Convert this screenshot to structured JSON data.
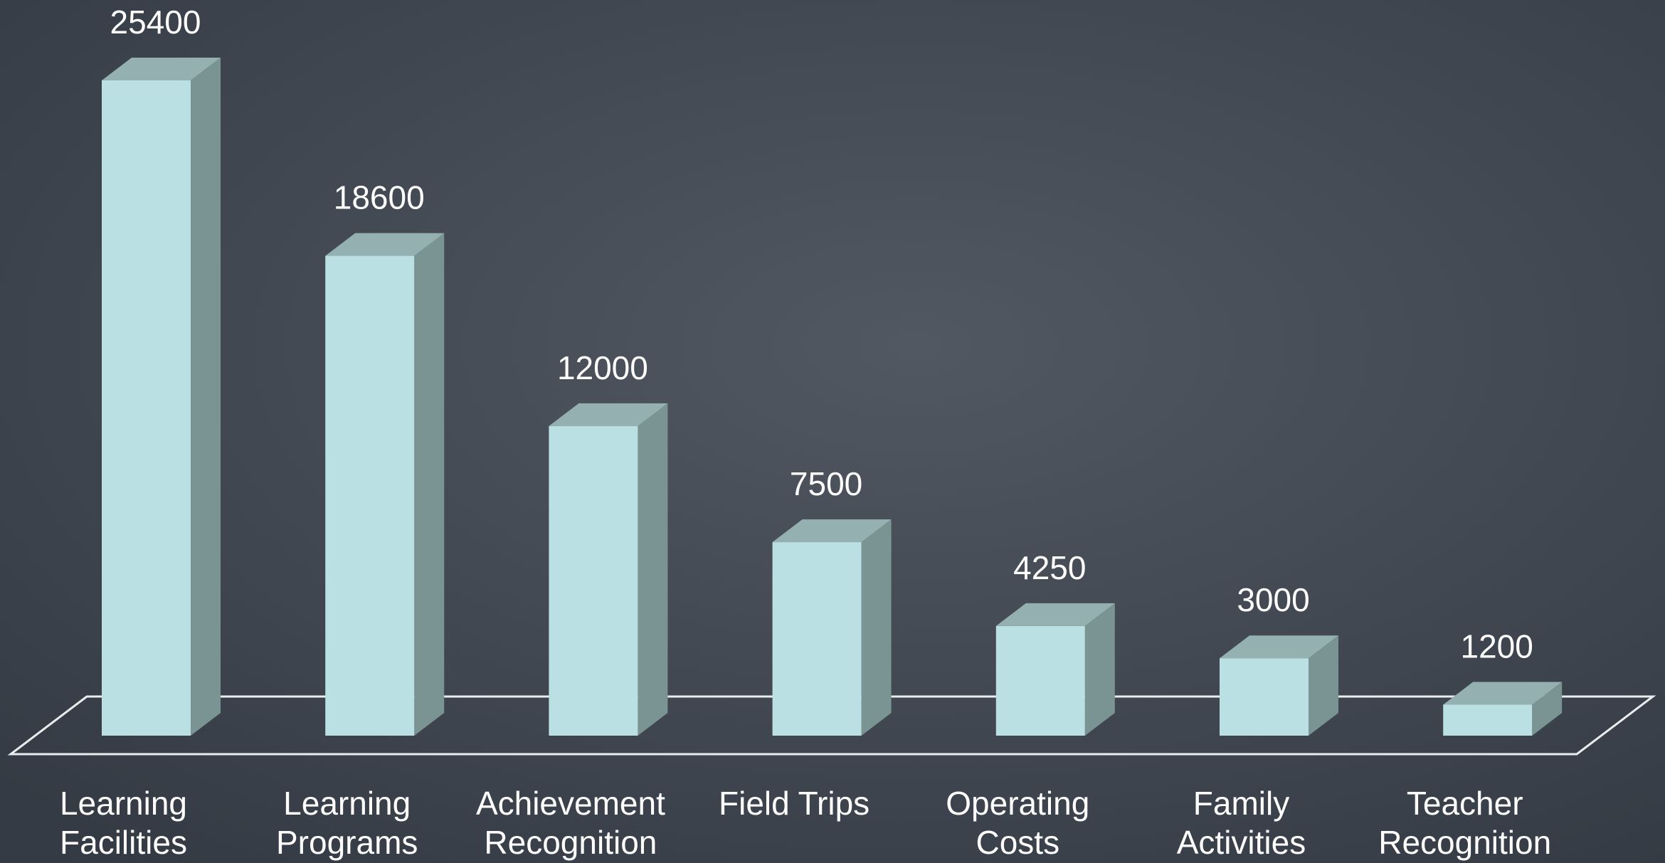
{
  "chart_data": {
    "type": "bar3d",
    "categories": [
      [
        "Learning",
        "Facilities"
      ],
      [
        "Learning",
        "Programs"
      ],
      [
        "Achievement",
        "Recognition"
      ],
      [
        "Field Trips"
      ],
      [
        "Operating",
        "Costs"
      ],
      [
        "Family",
        "Activities"
      ],
      [
        "Teacher",
        "Recognition"
      ]
    ],
    "values": [
      25400,
      18600,
      12000,
      7500,
      4250,
      3000,
      1200
    ],
    "color": "#bae0e3",
    "side_color": "#7a9393",
    "top_color": "#94b0b0"
  }
}
